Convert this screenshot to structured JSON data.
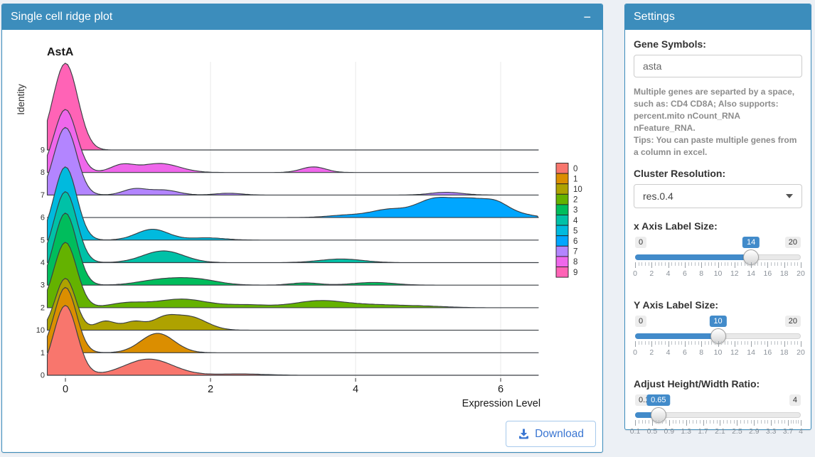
{
  "main_panel": {
    "title": "Single cell ridge plot",
    "collapse_label": "−",
    "download_label": "Download"
  },
  "settings": {
    "title": "Settings",
    "gene_symbols_label": "Gene Symbols:",
    "gene_symbols_value": "asta",
    "help_line1": "Multiple genes are separted by a space, such as: CD4 CD8A; Also supports: percent.mito nCount_RNA nFeature_RNA.",
    "help_line2": "Tips: You can paste multiple genes from a column in excel.",
    "cluster_resolution_label": "Cluster Resolution:",
    "cluster_resolution_value": "res.0.4",
    "sliders": [
      {
        "label": "x Axis Label Size:",
        "min": 0,
        "max": 20,
        "value": 14,
        "min_label": "0",
        "max_label": "20",
        "value_label": "14",
        "ticks": [
          0,
          2,
          4,
          6,
          8,
          10,
          12,
          14,
          16,
          18,
          20
        ],
        "tick_labels": [
          "0",
          "2",
          "4",
          "6",
          "8",
          "10",
          "12",
          "14",
          "16",
          "18",
          "20"
        ]
      },
      {
        "label": "Y Axis Label Size:",
        "min": 0,
        "max": 20,
        "value": 10,
        "min_label": "0",
        "max_label": "20",
        "value_label": "10",
        "ticks": [
          0,
          2,
          4,
          6,
          8,
          10,
          12,
          14,
          16,
          18,
          20
        ],
        "tick_labels": [
          "0",
          "2",
          "4",
          "6",
          "8",
          "10",
          "12",
          "14",
          "16",
          "18",
          "20"
        ]
      },
      {
        "label": "Adjust Height/Width Ratio:",
        "min": 0.1,
        "max": 4,
        "value": 0.65,
        "min_label": "0.1",
        "max_label": "4",
        "value_label": "0.65",
        "ticks": [
          0.1,
          0.5,
          0.9,
          1.3,
          1.7,
          2.1,
          2.5,
          2.9,
          3.3,
          3.7,
          4
        ],
        "tick_labels": [
          "0.1",
          "0.5",
          "0.9",
          "1.3",
          "1.7",
          "2.1",
          "2.5",
          "2.9",
          "3.3",
          "3.7",
          "4"
        ]
      }
    ]
  },
  "colors": {
    "accent": "#3c8dbc",
    "slider_fill": "#428bca",
    "download_text": "#3a76d2",
    "ridge_stroke": "#3a3f44",
    "gridline": "#e8e8e8"
  },
  "chart_data": {
    "type": "area",
    "subtype": "ridgeline",
    "title": "AstA",
    "xlabel": "Expression Level",
    "ylabel": "Identity",
    "x_ticks": [
      0,
      2,
      4,
      6
    ],
    "xlim": [
      -0.25,
      6.52
    ],
    "grid": "major-x-only",
    "legend_position": "right",
    "rows_bottom_to_top": [
      "0",
      "1",
      "10",
      "2",
      "3",
      "4",
      "5",
      "6",
      "7",
      "8",
      "9"
    ],
    "legend": [
      {
        "label": "0",
        "color": "#F8766D"
      },
      {
        "label": "1",
        "color": "#DB8E00"
      },
      {
        "label": "10",
        "color": "#AEA200"
      },
      {
        "label": "2",
        "color": "#64B200"
      },
      {
        "label": "3",
        "color": "#00BD5C"
      },
      {
        "label": "4",
        "color": "#00C1A7"
      },
      {
        "label": "5",
        "color": "#00BADE"
      },
      {
        "label": "6",
        "color": "#00A6FF"
      },
      {
        "label": "7",
        "color": "#B385FF"
      },
      {
        "label": "8",
        "color": "#EF67EB"
      },
      {
        "label": "9",
        "color": "#FF63B6"
      }
    ],
    "series_note": "peaks = gaussian components [center_expression, height_in_row_units, sigma]; draw order top row first",
    "series": [
      {
        "name": "9",
        "row": 10,
        "color": "#FF63B6",
        "peaks": [
          [
            0,
            3.85,
            0.17
          ]
        ]
      },
      {
        "name": "8",
        "row": 9,
        "color": "#EF67EB",
        "peaks": [
          [
            0,
            2.8,
            0.155
          ],
          [
            0.78,
            0.32,
            0.16
          ],
          [
            1.3,
            0.4,
            0.27
          ],
          [
            3.42,
            0.25,
            0.17
          ]
        ]
      },
      {
        "name": "7",
        "row": 8,
        "color": "#B385FF",
        "peaks": [
          [
            0,
            3.0,
            0.155
          ],
          [
            0.95,
            0.26,
            0.16
          ],
          [
            1.35,
            0.22,
            0.2
          ],
          [
            2.25,
            0.08,
            0.18
          ],
          [
            5.25,
            0.12,
            0.22
          ]
        ]
      },
      {
        "name": "6",
        "row": 7,
        "color": "#00A6FF",
        "peaks": [
          [
            3.95,
            0.12,
            0.3
          ],
          [
            4.45,
            0.3,
            0.22
          ],
          [
            5.1,
            0.83,
            0.28
          ],
          [
            5.6,
            0.62,
            0.22
          ],
          [
            5.95,
            0.55,
            0.18
          ],
          [
            6.3,
            0.12,
            0.18
          ]
        ]
      },
      {
        "name": "5",
        "row": 6,
        "color": "#00BADE",
        "peaks": [
          [
            0,
            3.25,
            0.155
          ],
          [
            1.2,
            0.48,
            0.22
          ],
          [
            1.95,
            0.1,
            0.25
          ]
        ]
      },
      {
        "name": "4",
        "row": 5,
        "color": "#00C1A7",
        "peaks": [
          [
            0,
            3.15,
            0.155
          ],
          [
            1.35,
            0.52,
            0.28
          ],
          [
            3.8,
            0.16,
            0.3
          ]
        ]
      },
      {
        "name": "3",
        "row": 4,
        "color": "#00BD5C",
        "peaks": [
          [
            0,
            3.2,
            0.155
          ],
          [
            1.3,
            0.22,
            0.3
          ],
          [
            1.8,
            0.25,
            0.3
          ],
          [
            3.3,
            0.1,
            0.2
          ],
          [
            4.25,
            0.12,
            0.28
          ]
        ]
      },
      {
        "name": "2",
        "row": 3,
        "color": "#64B200",
        "peaks": [
          [
            0,
            2.9,
            0.155
          ],
          [
            0.85,
            0.2,
            0.25
          ],
          [
            1.6,
            0.38,
            0.35
          ],
          [
            2.5,
            0.12,
            0.3
          ],
          [
            3.5,
            0.3,
            0.35
          ],
          [
            4.3,
            0.12,
            0.4
          ],
          [
            5.0,
            0.05,
            0.3
          ]
        ]
      },
      {
        "name": "10",
        "row": 2,
        "color": "#AEA200",
        "peaks": [
          [
            0,
            2.3,
            0.14
          ],
          [
            0.55,
            0.4,
            0.14
          ],
          [
            0.95,
            0.38,
            0.15
          ],
          [
            1.35,
            0.42,
            0.16
          ],
          [
            1.7,
            0.6,
            0.24
          ]
        ]
      },
      {
        "name": "1",
        "row": 1,
        "color": "#DB8E00",
        "peaks": [
          [
            0,
            2.9,
            0.15
          ],
          [
            1.27,
            0.86,
            0.23
          ]
        ]
      },
      {
        "name": "0",
        "row": 0,
        "color": "#F8766D",
        "peaks": [
          [
            0,
            3.1,
            0.16
          ],
          [
            1.15,
            0.72,
            0.33
          ],
          [
            2.4,
            0.06,
            0.35
          ]
        ]
      }
    ]
  }
}
